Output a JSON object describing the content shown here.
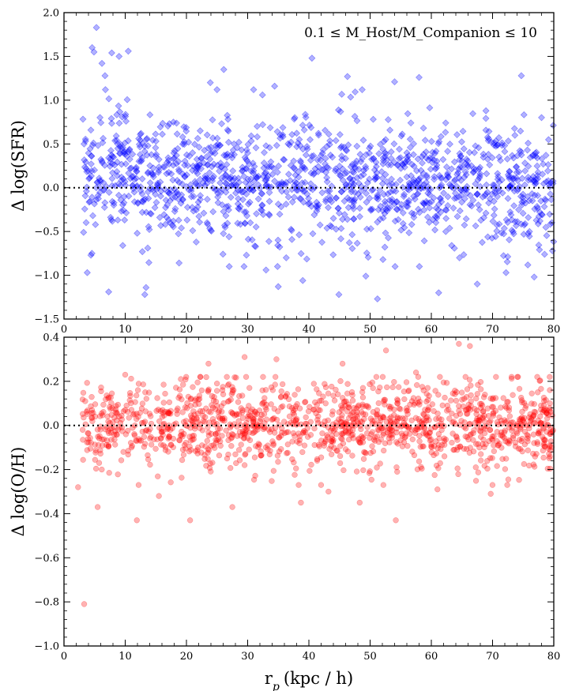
{
  "chart_data": [
    {
      "type": "scatter",
      "ylabel": "Δ log(SFR)",
      "xlim": [
        0,
        80
      ],
      "ylim": [
        -1.5,
        2.0
      ],
      "x_ticks": [
        0,
        10,
        20,
        30,
        40,
        50,
        60,
        70,
        80
      ],
      "x_tick_labels": [
        "0",
        "10",
        "20",
        "30",
        "40",
        "50",
        "60",
        "70",
        "80"
      ],
      "y_ticks": [
        -1.5,
        -1.0,
        -0.5,
        0.0,
        0.5,
        1.0,
        1.5,
        2.0
      ],
      "y_tick_labels": [
        "−1.5",
        "−1.0",
        "−0.5",
        "0.0",
        "0.5",
        "1.0",
        "1.5",
        "2.0"
      ],
      "reference_line_y": 0.0,
      "annotation": "0.1 ≤ M_Host/M_Companion ≤ 10",
      "marker": "diamond",
      "color": "#0000ff",
      "grid": false,
      "points": [
        [
          4.6,
          1.6
        ],
        [
          5.3,
          1.83
        ],
        [
          4.9,
          1.55
        ],
        [
          6.2,
          1.42
        ],
        [
          7.8,
          1.54
        ],
        [
          9.0,
          1.5
        ],
        [
          10.5,
          1.56
        ],
        [
          6.7,
          1.28
        ],
        [
          26.1,
          1.35
        ],
        [
          40.5,
          1.48
        ],
        [
          46.3,
          1.27
        ],
        [
          54.0,
          1.21
        ],
        [
          58.0,
          1.26
        ],
        [
          74.7,
          1.28
        ],
        [
          34.4,
          1.16
        ],
        [
          23.9,
          1.2
        ],
        [
          3.8,
          -0.97
        ],
        [
          7.3,
          -1.19
        ],
        [
          13.4,
          -1.14
        ],
        [
          13.2,
          -1.22
        ],
        [
          35.0,
          -1.13
        ],
        [
          44.9,
          -1.22
        ],
        [
          51.2,
          -1.27
        ],
        [
          61.2,
          -1.2
        ],
        [
          67.5,
          -1.1
        ],
        [
          49.3,
          -1.01
        ],
        [
          39.0,
          -1.06
        ],
        [
          76.8,
          -1.02
        ],
        [
          72.2,
          -0.97
        ],
        [
          33.0,
          -0.94
        ],
        [
          3.2,
          -0.51
        ],
        [
          4.4,
          -0.77
        ],
        [
          12.8,
          -0.73
        ],
        [
          18.8,
          -0.86
        ],
        [
          29.8,
          -0.77
        ],
        [
          52.1,
          -0.82
        ],
        [
          64.6,
          -0.8
        ],
        [
          78.5,
          -0.76
        ],
        [
          21.6,
          -0.62
        ],
        [
          9.6,
          -0.66
        ]
      ]
    },
    {
      "type": "scatter",
      "xlabel": "r_p (kpc / h)",
      "ylabel": "Δ log(O/H)",
      "xlim": [
        0,
        80
      ],
      "ylim": [
        -1.0,
        0.4
      ],
      "x_ticks": [
        0,
        10,
        20,
        30,
        40,
        50,
        60,
        70,
        80
      ],
      "x_tick_labels": [
        "0",
        "10",
        "20",
        "30",
        "40",
        "50",
        "60",
        "70",
        "80"
      ],
      "y_ticks": [
        -1.0,
        -0.8,
        -0.6,
        -0.4,
        -0.2,
        0.0,
        0.2,
        0.4
      ],
      "y_tick_labels": [
        "−1.0",
        "−0.8",
        "−0.6",
        "−0.4",
        "−0.2",
        "0.0",
        "0.2",
        "0.4"
      ],
      "reference_line_y": 0.0,
      "marker": "circle",
      "color": "#ff0000",
      "grid": false,
      "points": [
        [
          3.3,
          -0.81
        ],
        [
          11.9,
          -0.43
        ],
        [
          20.6,
          -0.43
        ],
        [
          54.2,
          -0.43
        ],
        [
          5.5,
          -0.37
        ],
        [
          27.5,
          -0.37
        ],
        [
          38.7,
          -0.35
        ],
        [
          48.3,
          -0.35
        ],
        [
          64.5,
          0.37
        ],
        [
          66.3,
          0.36
        ],
        [
          52.6,
          0.34
        ],
        [
          34.7,
          0.3
        ],
        [
          29.5,
          0.31
        ],
        [
          45.5,
          0.28
        ],
        [
          23.6,
          0.28
        ],
        [
          10.0,
          0.23
        ],
        [
          57.5,
          0.24
        ],
        [
          77.3,
          0.22
        ],
        [
          69.7,
          -0.31
        ],
        [
          2.3,
          -0.28
        ],
        [
          15.5,
          -0.32
        ],
        [
          43.2,
          -0.3
        ],
        [
          61.0,
          -0.29
        ],
        [
          72.4,
          -0.27
        ]
      ]
    }
  ]
}
